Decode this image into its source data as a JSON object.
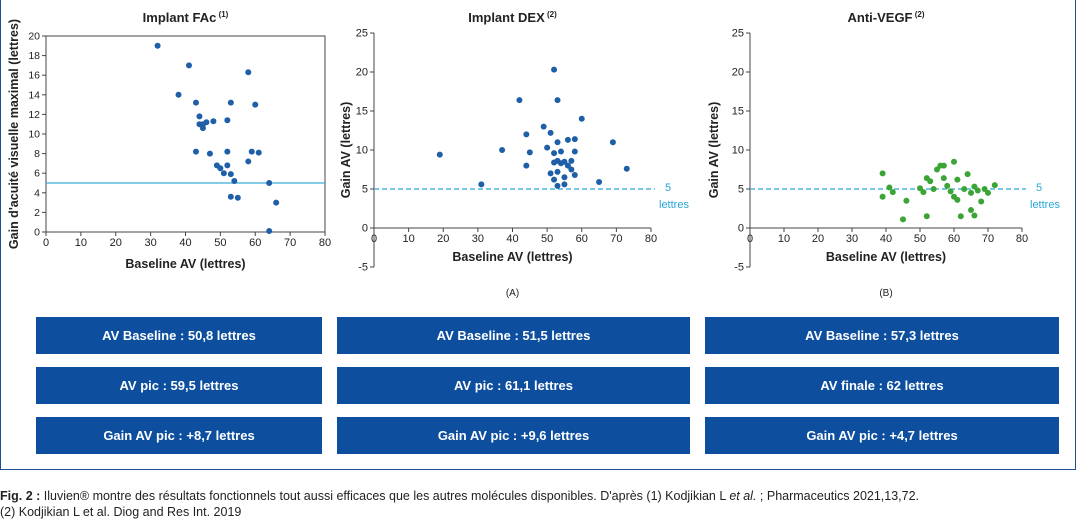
{
  "chart_data": [
    {
      "type": "scatter",
      "title": "Implant FAc",
      "title_ref": "(1)",
      "xlabel": "Baseline AV (lettres)",
      "ylabel": "Gain d'acuité visuelle maximal (lettres)",
      "xlim": [
        0,
        80
      ],
      "ylim": [
        0,
        20
      ],
      "xticks": [
        0,
        10,
        20,
        30,
        40,
        50,
        60,
        70,
        80
      ],
      "yticks": [
        0,
        2,
        4,
        6,
        8,
        10,
        12,
        14,
        16,
        18,
        20
      ],
      "ref_line": {
        "y": 5,
        "style": "solid",
        "color": "#3aaed8",
        "label": ""
      },
      "point_color": "#1f5fa8",
      "points": [
        [
          32,
          19
        ],
        [
          41,
          17
        ],
        [
          38,
          14
        ],
        [
          43,
          13.2
        ],
        [
          44,
          11.8
        ],
        [
          45,
          11
        ],
        [
          44,
          11
        ],
        [
          46,
          11.2
        ],
        [
          45,
          10.6
        ],
        [
          48,
          11.3
        ],
        [
          52,
          11.4
        ],
        [
          53,
          13.2
        ],
        [
          58,
          16.3
        ],
        [
          60,
          13
        ],
        [
          43,
          8.2
        ],
        [
          47,
          8
        ],
        [
          52,
          8.2
        ],
        [
          59,
          8.2
        ],
        [
          61,
          8.1
        ],
        [
          49,
          6.8
        ],
        [
          50,
          6.5
        ],
        [
          52,
          6.8
        ],
        [
          51,
          6
        ],
        [
          53,
          5.9
        ],
        [
          54,
          5.2
        ],
        [
          58,
          7.2
        ],
        [
          64,
          5
        ],
        [
          53,
          3.6
        ],
        [
          55,
          3.5
        ],
        [
          66,
          3
        ],
        [
          64,
          0.1
        ]
      ]
    },
    {
      "type": "scatter",
      "title": "Implant DEX",
      "title_ref": "(2)",
      "sublabel": "(A)",
      "xlabel": "Baseline AV (lettres)",
      "ylabel": "Gain AV (lettres)",
      "xlim": [
        0,
        80
      ],
      "ylim": [
        -5,
        25
      ],
      "xticks": [
        0,
        10,
        20,
        30,
        40,
        50,
        60,
        70,
        80
      ],
      "yticks": [
        -5,
        0,
        5,
        10,
        15,
        20,
        25
      ],
      "ref_line": {
        "y": 5,
        "style": "dashed",
        "color": "#29a6d9",
        "label": "5\nlettres"
      },
      "point_color": "#1f5fa8",
      "points": [
        [
          19,
          9.4
        ],
        [
          31,
          5.6
        ],
        [
          37,
          10
        ],
        [
          42,
          16.4
        ],
        [
          44,
          12
        ],
        [
          45,
          9.7
        ],
        [
          44,
          8
        ],
        [
          49,
          13
        ],
        [
          50,
          10.3
        ],
        [
          51,
          12.2
        ],
        [
          52,
          20.3
        ],
        [
          53,
          16.4
        ],
        [
          52,
          9.6
        ],
        [
          54,
          9.8
        ],
        [
          53,
          11
        ],
        [
          56,
          11.3
        ],
        [
          58,
          11.4
        ],
        [
          60,
          14
        ],
        [
          58,
          9.8
        ],
        [
          52,
          8.4
        ],
        [
          53,
          8.6
        ],
        [
          54,
          8.3
        ],
        [
          55,
          8.5
        ],
        [
          56,
          8
        ],
        [
          57,
          8.6
        ],
        [
          51,
          7
        ],
        [
          53,
          7.2
        ],
        [
          55,
          6.5
        ],
        [
          57,
          7.5
        ],
        [
          58,
          6.8
        ],
        [
          52,
          6.2
        ],
        [
          55,
          5.6
        ],
        [
          53,
          5.4
        ],
        [
          65,
          5.9
        ],
        [
          69,
          11
        ],
        [
          73,
          7.6
        ]
      ]
    },
    {
      "type": "scatter",
      "title": "Anti-VEGF",
      "title_ref": "(2)",
      "sublabel": "(B)",
      "xlabel": "Baseline AV (lettres)",
      "ylabel": "Gain AV (lettres)",
      "xlim": [
        0,
        80
      ],
      "ylim": [
        -5,
        25
      ],
      "xticks": [
        0,
        10,
        20,
        30,
        40,
        50,
        60,
        70,
        80
      ],
      "yticks": [
        -5,
        0,
        5,
        10,
        15,
        20,
        25
      ],
      "ref_line": {
        "y": 5,
        "style": "dashed",
        "color": "#29a6d9",
        "label": "5\nlettres"
      },
      "point_color": "#3aa535",
      "points": [
        [
          39,
          7
        ],
        [
          39,
          4
        ],
        [
          41,
          5.2
        ],
        [
          42,
          4.6
        ],
        [
          45,
          1.1
        ],
        [
          46,
          3.5
        ],
        [
          50,
          5.1
        ],
        [
          51,
          4.6
        ],
        [
          52,
          6.4
        ],
        [
          52,
          1.5
        ],
        [
          53,
          6
        ],
        [
          54,
          5
        ],
        [
          55,
          7.5
        ],
        [
          56,
          8
        ],
        [
          57,
          8
        ],
        [
          57,
          6.4
        ],
        [
          58,
          5.4
        ],
        [
          59,
          4.7
        ],
        [
          60,
          4
        ],
        [
          60,
          8.5
        ],
        [
          61,
          3.6
        ],
        [
          61,
          6.2
        ],
        [
          62,
          1.5
        ],
        [
          63,
          5
        ],
        [
          64,
          6.9
        ],
        [
          65,
          4.5
        ],
        [
          66,
          5.3
        ],
        [
          65,
          2.3
        ],
        [
          66,
          1.6
        ],
        [
          67,
          4.8
        ],
        [
          68,
          3.4
        ],
        [
          69,
          5
        ],
        [
          70,
          4.5
        ],
        [
          72,
          5.5
        ]
      ]
    }
  ],
  "stats": [
    [
      "AV Baseline : 50,8 lettres",
      "AV pic : 59,5 lettres",
      "Gain AV pic : +8,7 lettres"
    ],
    [
      "AV Baseline : 51,5 lettres",
      "AV pic : 61,1 lettres",
      "Gain AV pic : +9,6 lettres"
    ],
    [
      "AV Baseline : 57,3 lettres",
      "AV finale : 62 lettres",
      "Gain AV pic : +4,7 lettres"
    ]
  ],
  "caption": {
    "label": "Fig. 2 :",
    "text_1": " Iluvien® montre des résultats fonctionnels tout aussi efficaces que les autres molécules disponibles. D'après (1) Kodjikian L ",
    "et_al": "et al.",
    "text_2": " ; Pharmaceutics 2021,13,72.",
    "line2": "(2) Kodjikian L et al. Diog and Res Int. 2019"
  }
}
